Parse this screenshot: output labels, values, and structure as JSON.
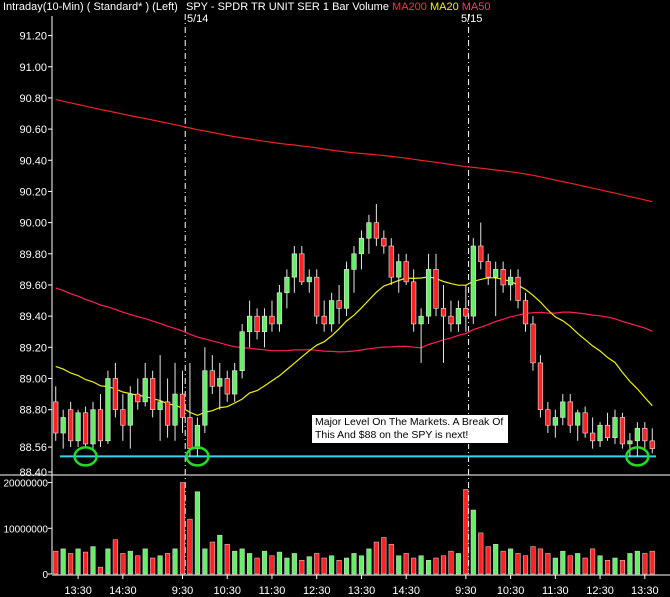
{
  "header": {
    "left": "Intraday(10-Min) ( Standard* )  (Left)",
    "symbol": "SPY - SPDR TR UNIT SER 1  Bar Volume",
    "ma200": "MA200",
    "ma20": "MA20",
    "ma50": "MA50"
  },
  "colors": {
    "background": "#000000",
    "up_candle": "#66ee66",
    "down_candle": "#ff2222",
    "ma200": "#ee2222",
    "ma50": "#ff1f55",
    "ma20": "#f2f200",
    "support_line": "#33d6e8",
    "circle": "#22dd22"
  },
  "annotation": {
    "text": "Major Level On The Markets.  A Break Of This And $88 on the SPY is next!"
  },
  "chart_data": {
    "type": "candlestick",
    "price_axis": {
      "ticks": [
        "91.20",
        "91.00",
        "90.80",
        "90.60",
        "90.40",
        "90.20",
        "90.00",
        "89.80",
        "89.60",
        "89.40",
        "89.20",
        "89.00",
        "88.80",
        "88.56",
        "88.40"
      ],
      "ylim": [
        88.4,
        91.3
      ]
    },
    "volume_axis": {
      "ticks": [
        "20000000",
        "10000000",
        "0"
      ],
      "ylim": [
        0,
        21000000
      ]
    },
    "time_labels": [
      "13:30",
      "14:30",
      "9:30",
      "10:30",
      "11:30",
      "12:30",
      "13:30",
      "14:30",
      "9:30",
      "10:30",
      "11:30",
      "12:30",
      "13:30"
    ],
    "time_label_bar_index": [
      3,
      9,
      17,
      23,
      29,
      35,
      41,
      47,
      55,
      61,
      67,
      73,
      79
    ],
    "date_markers": [
      {
        "label": "5/14",
        "bar_index": 17
      },
      {
        "label": "5/15",
        "bar_index": 55
      }
    ],
    "support_level": 88.5,
    "circles_bar_index": [
      4,
      19,
      78
    ],
    "candles": [
      {
        "o": 88.85,
        "h": 88.95,
        "l": 88.6,
        "c": 88.65
      },
      {
        "o": 88.65,
        "h": 88.8,
        "l": 88.55,
        "c": 88.75
      },
      {
        "o": 88.8,
        "h": 88.85,
        "l": 88.56,
        "c": 88.6
      },
      {
        "o": 88.6,
        "h": 88.8,
        "l": 88.56,
        "c": 88.78
      },
      {
        "o": 88.78,
        "h": 88.82,
        "l": 88.56,
        "c": 88.58
      },
      {
        "o": 88.58,
        "h": 88.85,
        "l": 88.55,
        "c": 88.8
      },
      {
        "o": 88.8,
        "h": 88.9,
        "l": 88.56,
        "c": 88.6
      },
      {
        "o": 88.6,
        "h": 89.05,
        "l": 88.58,
        "c": 89.0
      },
      {
        "o": 89.0,
        "h": 89.1,
        "l": 88.75,
        "c": 88.8
      },
      {
        "o": 88.8,
        "h": 88.9,
        "l": 88.6,
        "c": 88.7
      },
      {
        "o": 88.7,
        "h": 88.95,
        "l": 88.55,
        "c": 88.9
      },
      {
        "o": 88.9,
        "h": 89.0,
        "l": 88.8,
        "c": 88.85
      },
      {
        "o": 88.85,
        "h": 89.1,
        "l": 88.82,
        "c": 89.0
      },
      {
        "o": 89.0,
        "h": 89.05,
        "l": 88.75,
        "c": 88.8
      },
      {
        "o": 88.8,
        "h": 89.15,
        "l": 88.6,
        "c": 88.85
      },
      {
        "o": 88.85,
        "h": 89.0,
        "l": 88.62,
        "c": 88.7
      },
      {
        "o": 88.7,
        "h": 89.1,
        "l": 88.6,
        "c": 88.9
      },
      {
        "o": 88.9,
        "h": 89.05,
        "l": 88.65,
        "c": 88.75
      },
      {
        "o": 88.75,
        "h": 89.1,
        "l": 88.5,
        "c": 88.55
      },
      {
        "o": 88.55,
        "h": 88.75,
        "l": 88.5,
        "c": 88.7
      },
      {
        "o": 88.7,
        "h": 89.2,
        "l": 88.65,
        "c": 89.05
      },
      {
        "o": 89.05,
        "h": 89.15,
        "l": 88.9,
        "c": 88.95
      },
      {
        "o": 88.95,
        "h": 89.1,
        "l": 88.8,
        "c": 89.0
      },
      {
        "o": 89.0,
        "h": 89.05,
        "l": 88.85,
        "c": 88.9
      },
      {
        "o": 88.9,
        "h": 89.1,
        "l": 88.85,
        "c": 89.05
      },
      {
        "o": 89.05,
        "h": 89.35,
        "l": 89.0,
        "c": 89.3
      },
      {
        "o": 89.3,
        "h": 89.5,
        "l": 89.2,
        "c": 89.4
      },
      {
        "o": 89.4,
        "h": 89.45,
        "l": 89.25,
        "c": 89.3
      },
      {
        "o": 89.3,
        "h": 89.45,
        "l": 89.2,
        "c": 89.4
      },
      {
        "o": 89.4,
        "h": 89.5,
        "l": 89.3,
        "c": 89.35
      },
      {
        "o": 89.35,
        "h": 89.6,
        "l": 89.3,
        "c": 89.55
      },
      {
        "o": 89.55,
        "h": 89.7,
        "l": 89.45,
        "c": 89.65
      },
      {
        "o": 89.65,
        "h": 89.85,
        "l": 89.55,
        "c": 89.8
      },
      {
        "o": 89.8,
        "h": 89.85,
        "l": 89.6,
        "c": 89.62
      },
      {
        "o": 89.62,
        "h": 89.7,
        "l": 89.55,
        "c": 89.65
      },
      {
        "o": 89.65,
        "h": 89.7,
        "l": 89.35,
        "c": 89.4
      },
      {
        "o": 89.4,
        "h": 89.5,
        "l": 89.3,
        "c": 89.35
      },
      {
        "o": 89.35,
        "h": 89.55,
        "l": 89.3,
        "c": 89.5
      },
      {
        "o": 89.5,
        "h": 89.6,
        "l": 89.35,
        "c": 89.45
      },
      {
        "o": 89.45,
        "h": 89.75,
        "l": 89.4,
        "c": 89.7
      },
      {
        "o": 89.7,
        "h": 89.85,
        "l": 89.55,
        "c": 89.8
      },
      {
        "o": 89.8,
        "h": 89.95,
        "l": 89.7,
        "c": 89.9
      },
      {
        "o": 89.9,
        "h": 90.05,
        "l": 89.8,
        "c": 90.0
      },
      {
        "o": 90.0,
        "h": 90.12,
        "l": 89.85,
        "c": 89.9
      },
      {
        "o": 89.9,
        "h": 89.95,
        "l": 89.8,
        "c": 89.85
      },
      {
        "o": 89.85,
        "h": 89.9,
        "l": 89.6,
        "c": 89.65
      },
      {
        "o": 89.65,
        "h": 89.8,
        "l": 89.55,
        "c": 89.75
      },
      {
        "o": 89.75,
        "h": 89.8,
        "l": 89.6,
        "c": 89.62
      },
      {
        "o": 89.62,
        "h": 89.7,
        "l": 89.3,
        "c": 89.35
      },
      {
        "o": 89.35,
        "h": 89.45,
        "l": 89.1,
        "c": 89.4
      },
      {
        "o": 89.4,
        "h": 89.8,
        "l": 89.35,
        "c": 89.7
      },
      {
        "o": 89.7,
        "h": 89.8,
        "l": 89.4,
        "c": 89.45
      },
      {
        "o": 89.45,
        "h": 89.6,
        "l": 89.1,
        "c": 89.4
      },
      {
        "o": 89.4,
        "h": 89.5,
        "l": 89.3,
        "c": 89.35
      },
      {
        "o": 89.35,
        "h": 89.5,
        "l": 89.3,
        "c": 89.45
      },
      {
        "o": 89.45,
        "h": 89.6,
        "l": 89.3,
        "c": 89.4
      },
      {
        "o": 89.4,
        "h": 89.9,
        "l": 89.35,
        "c": 89.85
      },
      {
        "o": 89.85,
        "h": 90.0,
        "l": 89.7,
        "c": 89.75
      },
      {
        "o": 89.75,
        "h": 89.8,
        "l": 89.6,
        "c": 89.65
      },
      {
        "o": 89.65,
        "h": 89.75,
        "l": 89.4,
        "c": 89.7
      },
      {
        "o": 89.7,
        "h": 89.75,
        "l": 89.55,
        "c": 89.6
      },
      {
        "o": 89.6,
        "h": 89.7,
        "l": 89.5,
        "c": 89.65
      },
      {
        "o": 89.65,
        "h": 89.7,
        "l": 89.45,
        "c": 89.5
      },
      {
        "o": 89.5,
        "h": 89.55,
        "l": 89.3,
        "c": 89.35
      },
      {
        "o": 89.35,
        "h": 89.4,
        "l": 89.05,
        "c": 89.1
      },
      {
        "o": 89.1,
        "h": 89.15,
        "l": 88.75,
        "c": 88.8
      },
      {
        "o": 88.8,
        "h": 88.85,
        "l": 88.65,
        "c": 88.7
      },
      {
        "o": 88.7,
        "h": 88.8,
        "l": 88.62,
        "c": 88.75
      },
      {
        "o": 88.75,
        "h": 88.9,
        "l": 88.7,
        "c": 88.85
      },
      {
        "o": 88.85,
        "h": 88.9,
        "l": 88.65,
        "c": 88.7
      },
      {
        "o": 88.7,
        "h": 88.8,
        "l": 88.6,
        "c": 88.78
      },
      {
        "o": 88.78,
        "h": 88.82,
        "l": 88.62,
        "c": 88.65
      },
      {
        "o": 88.65,
        "h": 88.75,
        "l": 88.55,
        "c": 88.6
      },
      {
        "o": 88.6,
        "h": 88.72,
        "l": 88.56,
        "c": 88.7
      },
      {
        "o": 88.7,
        "h": 88.78,
        "l": 88.6,
        "c": 88.62
      },
      {
        "o": 88.62,
        "h": 88.8,
        "l": 88.58,
        "c": 88.75
      },
      {
        "o": 88.75,
        "h": 88.78,
        "l": 88.55,
        "c": 88.58
      },
      {
        "o": 88.58,
        "h": 88.65,
        "l": 88.5,
        "c": 88.6
      },
      {
        "o": 88.6,
        "h": 88.72,
        "l": 88.5,
        "c": 88.68
      },
      {
        "o": 88.68,
        "h": 88.72,
        "l": 88.55,
        "c": 88.6
      },
      {
        "o": 88.6,
        "h": 88.68,
        "l": 88.52,
        "c": 88.55
      }
    ],
    "volumes": [
      5000000,
      5500000,
      4500000,
      5500000,
      4800000,
      6000000,
      1500000,
      5500000,
      7500000,
      4500000,
      5000000,
      4000000,
      5500000,
      3500000,
      4000000,
      4500000,
      5500000,
      20000000,
      12000000,
      18000000,
      5500000,
      7000000,
      8500000,
      6500000,
      5000000,
      5500000,
      4500000,
      3500000,
      5000000,
      4000000,
      4800000,
      3500000,
      4500000,
      3000000,
      3800000,
      4500000,
      3500000,
      4000000,
      3000000,
      3500000,
      4500000,
      4000000,
      5500000,
      7000000,
      8000000,
      6500000,
      4000000,
      4500000,
      3500000,
      4000000,
      3000000,
      3500000,
      4000000,
      5000000,
      4500000,
      18500000,
      14000000,
      9000000,
      6000000,
      6500000,
      5000000,
      5500000,
      4500000,
      4000000,
      6000000,
      5500000,
      4500000,
      3500000,
      5000000,
      4000000,
      4500000,
      3500000,
      5500000,
      4000000,
      3000000,
      3500000,
      3000000,
      4500000,
      5000000,
      4500000,
      5000000
    ]
  }
}
